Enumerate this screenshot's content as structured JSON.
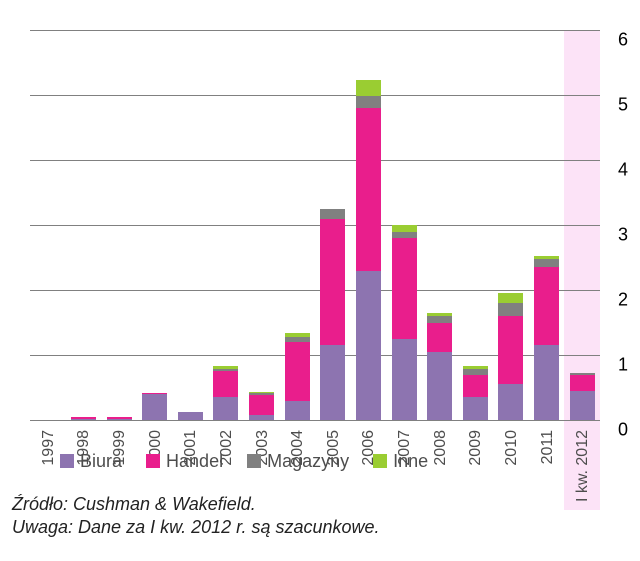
{
  "chart": {
    "type": "stacked-bar",
    "background_color": "#ffffff",
    "grid_color": "#808080",
    "highlight_color": "#fce3f7",
    "axis_font_size": 18,
    "xlabel_font_size": 16,
    "ylim": [
      0,
      6
    ],
    "ytick_step": 1,
    "yticks": [
      0,
      1,
      2,
      3,
      4,
      5,
      6
    ],
    "bar_width_ratio": 0.7,
    "categories": [
      "1997",
      "1998",
      "1999",
      "2000",
      "2001",
      "2002",
      "2003",
      "2004",
      "2005",
      "2006",
      "2007",
      "2008",
      "2009",
      "2010",
      "2011",
      "I kw. 2012"
    ],
    "highlighted_index": 15,
    "series": [
      {
        "name": "Biura",
        "color": "#8d74b0",
        "values": [
          0.0,
          0.02,
          0.02,
          0.4,
          0.12,
          0.35,
          0.08,
          0.3,
          1.15,
          2.3,
          1.25,
          1.05,
          0.35,
          0.55,
          1.15,
          0.45
        ]
      },
      {
        "name": "Handel",
        "color": "#e91e8c",
        "values": [
          0.0,
          0.02,
          0.02,
          0.02,
          0.0,
          0.4,
          0.3,
          0.9,
          1.95,
          2.5,
          1.55,
          0.45,
          0.35,
          1.05,
          1.2,
          0.25
        ]
      },
      {
        "name": "Magazyny",
        "color": "#808080",
        "values": [
          0.0,
          0.0,
          0.0,
          0.0,
          0.0,
          0.03,
          0.03,
          0.07,
          0.15,
          0.18,
          0.1,
          0.1,
          0.08,
          0.2,
          0.12,
          0.03
        ]
      },
      {
        "name": "Inne",
        "color": "#9acd32",
        "values": [
          0.0,
          0.0,
          0.0,
          0.0,
          0.0,
          0.05,
          0.02,
          0.07,
          0.0,
          0.25,
          0.1,
          0.05,
          0.05,
          0.15,
          0.05,
          0.0
        ]
      }
    ]
  },
  "legend": {
    "items": [
      {
        "label": "Biura",
        "color": "#8d74b0"
      },
      {
        "label": "Handel",
        "color": "#e91e8c"
      },
      {
        "label": "Magazyny",
        "color": "#808080"
      },
      {
        "label": "Inne",
        "color": "#9acd32"
      }
    ]
  },
  "notes": {
    "source": "Źródło: Cushman & Wakefield.",
    "remark": "Uwaga: Dane za I kw. 2012 r. są szacunkowe."
  }
}
